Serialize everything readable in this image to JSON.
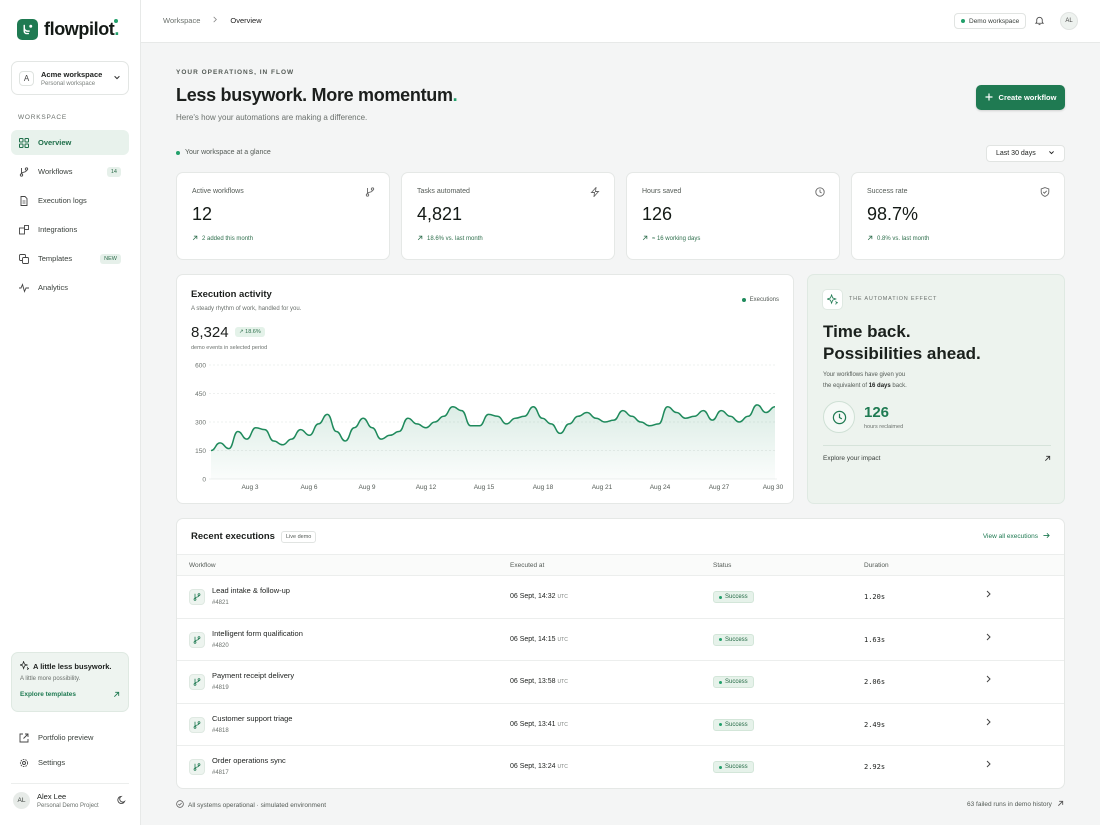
{
  "brand": {
    "name": "flowpilot",
    "dot": "."
  },
  "workspace_switcher": {
    "avatar": "A",
    "name": "Acme workspace",
    "sub": "Personal workspace"
  },
  "sidebar": {
    "section_label": "WORKSPACE",
    "items": [
      {
        "label": "Overview",
        "icon": "grid-icon",
        "active": true
      },
      {
        "label": "Workflows",
        "icon": "branch-icon",
        "badge": "14"
      },
      {
        "label": "Execution logs",
        "icon": "document-icon"
      },
      {
        "label": "Integrations",
        "icon": "puzzle-icon"
      },
      {
        "label": "Templates",
        "icon": "copy-icon",
        "badge": "NEW"
      },
      {
        "label": "Analytics",
        "icon": "pulse-icon"
      }
    ],
    "promo": {
      "title": "A little less busywork.",
      "sub": "A little more possibility.",
      "link": "Explore templates"
    },
    "links": [
      {
        "label": "Portfolio preview",
        "icon": "external-link-icon"
      },
      {
        "label": "Settings",
        "icon": "gear-icon"
      }
    ],
    "user": {
      "initials": "AL",
      "name": "Alex Lee",
      "project": "Personal Demo Project"
    }
  },
  "topbar": {
    "breadcrumb": [
      "Workspace",
      "Overview"
    ],
    "demo_label": "Demo workspace",
    "avatar": "AL"
  },
  "hero": {
    "eyebrow": "YOUR OPERATIONS, IN FLOW",
    "headline": "Less busywork. More momentum",
    "headline_dot": ".",
    "subhead": "Here's how your automations are making a difference.",
    "create_button": "Create workflow"
  },
  "glance": {
    "label": "Your workspace at a glance",
    "range": "Last 30 days"
  },
  "kpis": [
    {
      "label": "Active workflows",
      "value": "12",
      "delta": "2 added this month",
      "icon": "branch-icon"
    },
    {
      "label": "Tasks automated",
      "value": "4,821",
      "delta": "18.6% vs. last month",
      "icon": "bolt-icon"
    },
    {
      "label": "Hours saved",
      "value": "126",
      "delta": "≈ 16 working days",
      "icon": "clock-icon"
    },
    {
      "label": "Success rate",
      "value": "98.7%",
      "delta": "0.8% vs. last month",
      "icon": "shield-icon"
    }
  ],
  "activity": {
    "title": "Execution activity",
    "subtitle": "A steady rhythm of work, handled for you.",
    "total": "8,324",
    "badge": "18.6%",
    "caption": "demo events in selected period",
    "legend": "Executions"
  },
  "chart_data": {
    "type": "area",
    "series": [
      {
        "name": "Executions",
        "values": [
          150,
          190,
          160,
          250,
          210,
          270,
          260,
          200,
          180,
          210,
          260,
          230,
          290,
          340,
          250,
          200,
          270,
          320,
          270,
          210,
          230,
          250,
          320,
          290,
          270,
          300,
          330,
          380,
          360,
          280,
          280,
          340,
          330,
          290,
          320,
          330,
          380,
          320,
          290,
          240,
          290,
          330,
          350,
          320,
          300,
          310,
          360,
          330,
          300,
          280,
          290,
          380,
          350,
          320,
          330,
          360,
          310,
          360,
          330,
          300,
          330,
          390,
          350,
          380
        ]
      }
    ],
    "x_range": [
      0,
      30
    ],
    "x_ticks": [
      "Aug 3",
      "Aug 6",
      "Aug 9",
      "Aug 12",
      "Aug 15",
      "Aug 18",
      "Aug 21",
      "Aug 24",
      "Aug 27",
      "Aug 30"
    ],
    "y_ticks": [
      "0",
      "150",
      "300",
      "450",
      "600"
    ],
    "ylim": [
      0,
      600
    ],
    "grid": true,
    "color": "#1f8a5c"
  },
  "effect": {
    "eyebrow": "THE AUTOMATION EFFECT",
    "headline_1": "Time back.",
    "headline_2": "Possibilities ahead.",
    "sub_1": "Your workflows have given you",
    "sub_2a": "the equivalent of ",
    "sub_2b": "16 days",
    "sub_2c": " back.",
    "hours": "126",
    "hours_label": "hours reclaimed",
    "link": "Explore your impact"
  },
  "recent": {
    "title": "Recent executions",
    "tag": "Live demo",
    "view_all": "View all executions",
    "columns": [
      "Workflow",
      "Executed at",
      "Status",
      "Duration"
    ],
    "rows": [
      {
        "name": "Lead intake & follow-up",
        "id": "#4821",
        "time": "06 Sept, 14:32",
        "tz": "UTC",
        "status": "Success",
        "duration": "1.20s"
      },
      {
        "name": "Intelligent form qualification",
        "id": "#4820",
        "time": "06 Sept, 14:15",
        "tz": "UTC",
        "status": "Success",
        "duration": "1.63s"
      },
      {
        "name": "Payment receipt delivery",
        "id": "#4819",
        "time": "06 Sept, 13:58",
        "tz": "UTC",
        "status": "Success",
        "duration": "2.06s"
      },
      {
        "name": "Customer support triage",
        "id": "#4818",
        "time": "06 Sept, 13:41",
        "tz": "UTC",
        "status": "Success",
        "duration": "2.49s"
      },
      {
        "name": "Order operations sync",
        "id": "#4817",
        "time": "06 Sept, 13:24",
        "tz": "UTC",
        "status": "Success",
        "duration": "2.92s"
      }
    ]
  },
  "footer": {
    "status": "All systems operational · simulated environment",
    "failed": "63 failed runs in demo history"
  },
  "colors": {
    "accent": "#1f7a52",
    "accent_light": "#22a06b",
    "panel": "#edf3ee"
  }
}
